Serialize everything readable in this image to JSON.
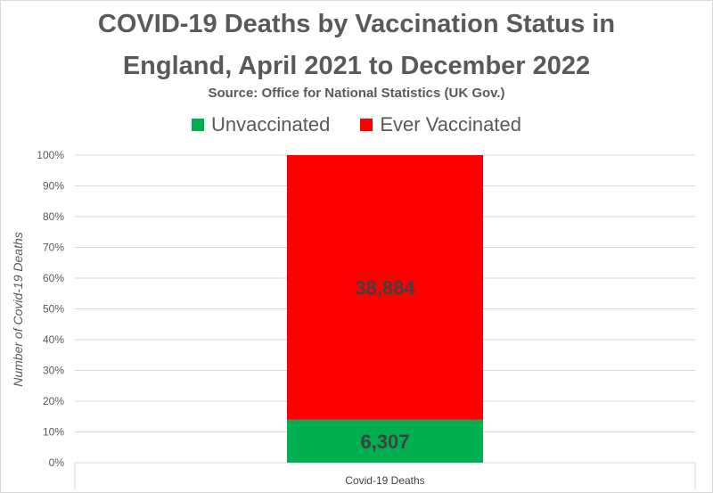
{
  "chart_data": {
    "type": "bar",
    "stacked": true,
    "normalized": true,
    "title_line1": "COVID-19 Deaths by Vaccination Status in",
    "title_line2": "England, April 2021 to December 2022",
    "subtitle": "Source: Office for National Statistics (UK Gov.)",
    "ylabel": "Number of Covid-19 Deaths",
    "categories": [
      "Covid-19 Deaths"
    ],
    "series": [
      {
        "name": "Unvaccinated",
        "values": [
          6307
        ],
        "label": "6,307",
        "color": "#00b050"
      },
      {
        "name": "Ever Vaccinated",
        "values": [
          38884
        ],
        "label": "38,884",
        "color": "#ff0000"
      }
    ],
    "yticks": [
      "0%",
      "10%",
      "20%",
      "30%",
      "40%",
      "50%",
      "60%",
      "70%",
      "80%",
      "90%",
      "100%"
    ],
    "ylim": [
      0,
      1
    ],
    "legend_position": "top",
    "grid": true
  }
}
